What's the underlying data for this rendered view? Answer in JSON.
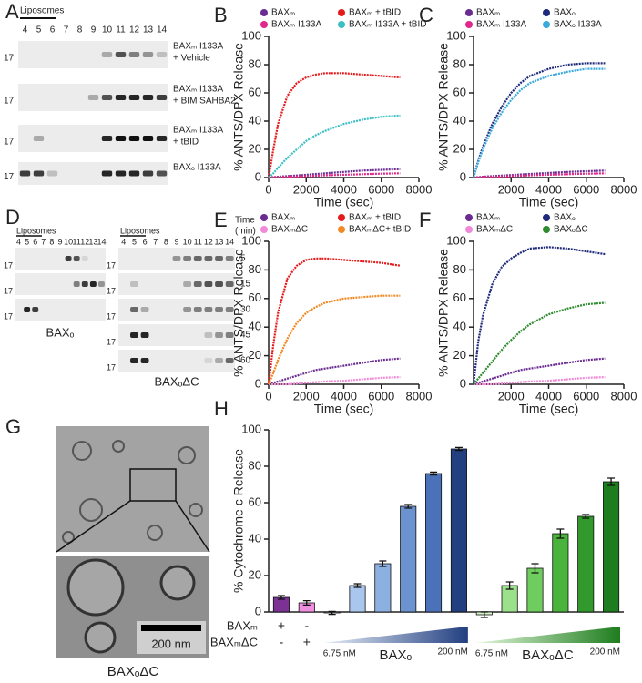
{
  "panels": {
    "A": {
      "label": "A",
      "lane_header": "Liposomes",
      "lanes": [
        "4",
        "5",
        "6",
        "7",
        "8",
        "9",
        "10",
        "11",
        "12",
        "13",
        "14"
      ],
      "blots": [
        {
          "marker": "17",
          "caption": [
            "BAXₘ I133A",
            "+ Vehicle"
          ]
        },
        {
          "marker": "17",
          "caption": [
            "BAXₘ I133A",
            "+ BIM SAHBA2"
          ]
        },
        {
          "marker": "17",
          "caption": [
            "BAXₘ I133A",
            "+ tBID"
          ]
        },
        {
          "marker": "17",
          "caption": [
            "BAXₒ I133A"
          ]
        }
      ]
    },
    "D": {
      "label": "D",
      "left": {
        "lane_header": "Liposomes",
        "lanes": [
          "4",
          "5",
          "6",
          "7",
          "8",
          "9",
          "10",
          "11",
          "12",
          "13",
          "14"
        ],
        "markers": [
          "17",
          "17",
          "17"
        ],
        "caption": "BAXₒ"
      },
      "right": {
        "lane_header": "Liposomes",
        "lanes": [
          "4",
          "5",
          "6",
          "7",
          "8",
          "9",
          "10",
          "11",
          "12",
          "13",
          "14"
        ],
        "markers": [
          "17",
          "17",
          "17",
          "17",
          "17"
        ],
        "time_header": [
          "Time",
          "(min)"
        ],
        "times": [
          "5",
          "15",
          "30",
          "45",
          "60"
        ],
        "caption": "BAXₒΔC"
      }
    },
    "G": {
      "label": "G",
      "scale": "200 nm",
      "caption": "BAXₒΔC"
    }
  },
  "chart_data": [
    {
      "type": "line",
      "panel": "B",
      "x_label": "Time (sec)",
      "y_label": "% ANTS/DPX Release",
      "x": [
        0,
        250,
        500,
        1000,
        1500,
        2000,
        2500,
        3000,
        4000,
        5000,
        6000,
        7000
      ],
      "xlim": [
        0,
        8000
      ],
      "xticks": [
        0,
        2000,
        4000,
        6000,
        8000
      ],
      "ylim": [
        0,
        100
      ],
      "yticks": [
        0,
        20,
        40,
        60,
        80,
        100
      ],
      "series": [
        {
          "name": "BAXₘ",
          "color": "#6a2c91",
          "values": [
            0,
            0.3,
            0.6,
            1,
            1.5,
            2,
            2.5,
            3,
            4,
            5,
            5.5,
            6
          ]
        },
        {
          "name": "BAXₘ + tBID",
          "color": "#e41a1c",
          "values": [
            0,
            20,
            38,
            58,
            67,
            71,
            73,
            74,
            74,
            73,
            72,
            71
          ]
        },
        {
          "name": "BAXₘ I133A",
          "color": "#e0288a",
          "values": [
            0,
            0.2,
            0.4,
            0.6,
            0.8,
            1,
            1.3,
            1.6,
            2,
            2.4,
            2.8,
            3
          ]
        },
        {
          "name": "BAXₘ I133A + tBID",
          "color": "#3bbfc4",
          "values": [
            0,
            3,
            7,
            14,
            20,
            26,
            30,
            33,
            38,
            41,
            43,
            44
          ]
        }
      ]
    },
    {
      "type": "line",
      "panel": "C",
      "x_label": "Time (sec)",
      "y_label": "% ANTS/DPX Release",
      "x": [
        0,
        250,
        500,
        1000,
        1500,
        2000,
        2500,
        3000,
        4000,
        5000,
        6000,
        7000
      ],
      "xlim": [
        0,
        8000
      ],
      "xticks": [
        2000,
        4000,
        6000,
        8000
      ],
      "ylim": [
        0,
        100
      ],
      "yticks": [
        0,
        20,
        40,
        60,
        80,
        100
      ],
      "series": [
        {
          "name": "BAXₘ",
          "color": "#6a2c91",
          "values": [
            0,
            0.3,
            0.6,
            1,
            1.4,
            1.8,
            2.2,
            2.6,
            3.3,
            4,
            4.5,
            5
          ]
        },
        {
          "name": "BAXₒ",
          "color": "#1f2a7a",
          "values": [
            0,
            12,
            22,
            38,
            50,
            60,
            67,
            72,
            77,
            80,
            81,
            81
          ]
        },
        {
          "name": "BAXₘ I133A",
          "color": "#e0288a",
          "values": [
            0,
            0.2,
            0.4,
            0.6,
            0.8,
            1,
            1.3,
            1.6,
            2,
            2.4,
            2.8,
            3
          ]
        },
        {
          "name": "BAXₒ I133A",
          "color": "#3aa9dc",
          "values": [
            0,
            11,
            20,
            35,
            46,
            55,
            62,
            67,
            72,
            75,
            77,
            77
          ]
        }
      ]
    },
    {
      "type": "line",
      "panel": "E",
      "x_label": "Time (sec)",
      "y_label": "% ANTS/DPX Release",
      "x": [
        0,
        250,
        500,
        1000,
        1500,
        2000,
        2500,
        3000,
        4000,
        5000,
        6000,
        7000
      ],
      "xlim": [
        0,
        8000
      ],
      "xticks": [
        0,
        2000,
        4000,
        6000,
        8000
      ],
      "ylim": [
        0,
        100
      ],
      "yticks": [
        0,
        20,
        40,
        60,
        80,
        100
      ],
      "series": [
        {
          "name": "BAXₘ",
          "color": "#6a2c91",
          "values": [
            0,
            1,
            2,
            4,
            6,
            8,
            10,
            11,
            13,
            15,
            17,
            18
          ]
        },
        {
          "name": "BAXₘ + tBID",
          "color": "#e41a1c",
          "values": [
            0,
            28,
            50,
            74,
            83,
            87,
            88,
            88,
            87,
            86,
            85,
            83
          ]
        },
        {
          "name": "BAXₘΔC",
          "color": "#f08ad8",
          "values": [
            0,
            0,
            0,
            0,
            0.5,
            1,
            1.5,
            2,
            2.5,
            3.5,
            4.5,
            5
          ]
        },
        {
          "name": "BAXₘΔC+ tBID",
          "color": "#f08a24",
          "values": [
            0,
            8,
            17,
            32,
            43,
            50,
            54,
            57,
            60,
            61,
            62,
            62
          ]
        }
      ]
    },
    {
      "type": "line",
      "panel": "F",
      "x_label": "Time (sec)",
      "y_label": "% ANTS/DPX Release",
      "x": [
        0,
        250,
        500,
        1000,
        1500,
        2000,
        2500,
        3000,
        4000,
        5000,
        6000,
        7000
      ],
      "xlim": [
        0,
        8000
      ],
      "xticks": [
        2000,
        4000,
        6000,
        8000
      ],
      "ylim": [
        0,
        100
      ],
      "yticks": [
        0,
        20,
        40,
        60,
        80,
        100
      ],
      "series": [
        {
          "name": "BAXₘ",
          "color": "#6a2c91",
          "values": [
            0,
            1,
            2,
            4,
            6,
            8,
            10,
            11,
            13,
            15,
            17,
            18
          ]
        },
        {
          "name": "BAXₒ",
          "color": "#1f2a7a",
          "values": [
            0,
            30,
            48,
            70,
            82,
            88,
            92,
            95,
            96,
            95,
            93,
            91
          ]
        },
        {
          "name": "BAXₘΔC",
          "color": "#f08ad8",
          "values": [
            0,
            0,
            0,
            0,
            0.5,
            1,
            1.5,
            2,
            2.5,
            3.5,
            4.5,
            5
          ]
        },
        {
          "name": "BAXₒΔC",
          "color": "#2e8b2e",
          "values": [
            0,
            4,
            8,
            16,
            24,
            31,
            37,
            42,
            49,
            53,
            56,
            57
          ]
        }
      ]
    },
    {
      "type": "bar",
      "panel": "H",
      "y_label": "% Cytochrome c Release",
      "categories": [
        null,
        null,
        null,
        null,
        null,
        null,
        null,
        null,
        null,
        null,
        null,
        null,
        null,
        null
      ],
      "values": [
        8,
        5,
        -0.5,
        14.5,
        26.5,
        58,
        76,
        89.5,
        -1.5,
        14.5,
        24,
        43,
        52.5,
        71.5
      ],
      "errors": [
        1,
        1.2,
        0.8,
        1,
        1.5,
        1,
        0.8,
        0.8,
        1.5,
        2,
        2.5,
        2.5,
        1,
        2
      ],
      "colors": [
        "#7b3294",
        "#f08ee0",
        "#dbe6f5",
        "#a9c6ec",
        "#8cb0e0",
        "#6b93cf",
        "#4b72b8",
        "#223f80",
        "#d6f5c8",
        "#9be08a",
        "#6fcc5e",
        "#4ab33c",
        "#329a2c",
        "#1e7d1e"
      ],
      "ylim": [
        0,
        100
      ],
      "yticks": [
        0,
        20,
        40,
        60,
        80,
        100
      ],
      "conditions": {
        "rows": [
          {
            "label": "BAXₘ",
            "marks": [
              "+",
              "-"
            ]
          },
          {
            "label": "BAXₘΔC",
            "marks": [
              "-",
              "+"
            ]
          }
        ],
        "groups": [
          {
            "name": "BAXₒ",
            "low": "6.75 nM",
            "high": "200 nM",
            "color": "#223f80"
          },
          {
            "name": "BAXₒΔC",
            "low": "6.75 nM",
            "high": "200 nM",
            "color": "#1e7d1e"
          }
        ]
      }
    }
  ]
}
